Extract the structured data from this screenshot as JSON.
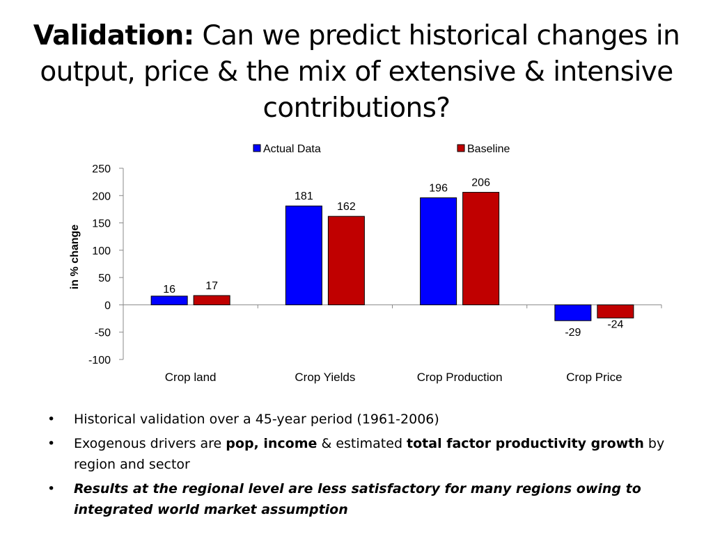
{
  "title": {
    "bold_part": "Validation:",
    "rest": " Can we predict historical changes in output, price & the mix of extensive & intensive contributions?"
  },
  "chart_data": {
    "type": "bar",
    "categories": [
      "Crop land",
      "Crop Yields",
      "Crop Production",
      "Crop Price"
    ],
    "series": [
      {
        "name": "Actual Data",
        "values": [
          16,
          181,
          196,
          -29
        ],
        "color": "#0000ff"
      },
      {
        "name": "Baseline",
        "values": [
          17,
          162,
          206,
          -24
        ],
        "color": "#c00000"
      }
    ],
    "data_labels": [
      [
        "16",
        "181",
        "196",
        "-29"
      ],
      [
        "17",
        "162",
        "206",
        "-24"
      ]
    ],
    "ylabel": "in % change",
    "xlabel": "",
    "ylim": [
      -100,
      250
    ],
    "yticks": [
      250,
      200,
      150,
      100,
      50,
      0,
      -50,
      -100
    ],
    "ytick_labels": [
      "250",
      "200",
      "150",
      "100",
      "50",
      "0",
      "-50",
      "-100"
    ],
    "legend_position": "top",
    "grid": false
  },
  "bullets": [
    {
      "text": "Historical validation over a 45-year period (1961-2006)"
    },
    {
      "p1": "Exogenous drivers are ",
      "b1": "pop, income",
      "p2": " & estimated ",
      "b2": "total factor productivity growth",
      "p3": " by region and sector"
    },
    {
      "emph": "Results at the regional level are less satisfactory for many regions owing to integrated world market assumption"
    }
  ],
  "bullet_symbol": "•"
}
